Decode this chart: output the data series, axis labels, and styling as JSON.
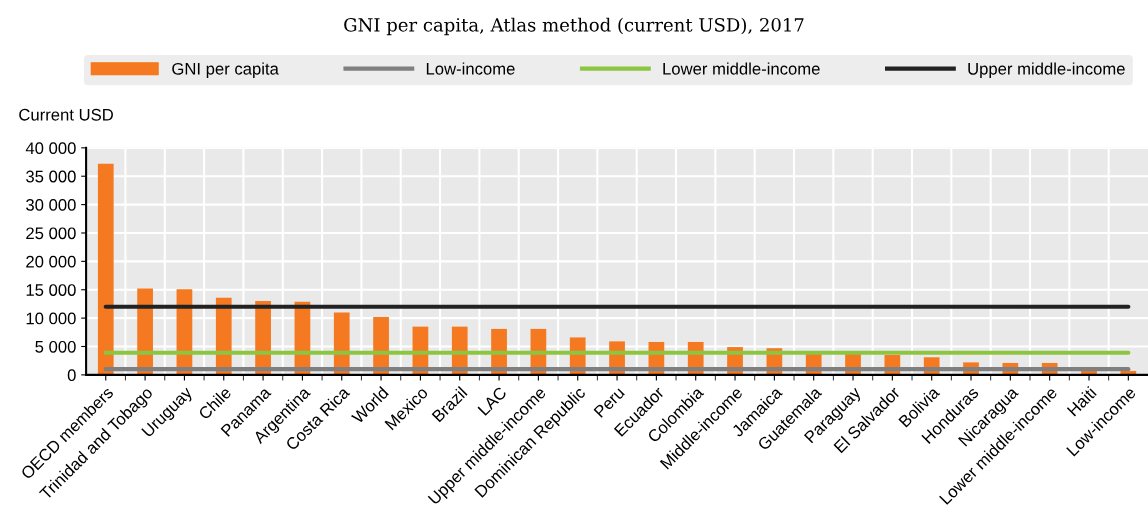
{
  "chart_data": {
    "type": "bar",
    "subtitle": "GNI per capita, Atlas method (current USD), 2017",
    "ylabel": "Current USD",
    "categories": [
      "OECD members",
      "Trinidad and Tobago",
      "Uruguay",
      "Chile",
      "Panama",
      "Argentina",
      "Costa Rica",
      "World",
      "Mexico",
      "Brazil",
      "LAC",
      "Upper middle-income",
      "Dominican Republic",
      "Peru",
      "Ecuador",
      "Colombia",
      "Middle-income",
      "Jamaica",
      "Guatemala",
      "Paraguay",
      "El Salvador",
      "Bolivia",
      "Honduras",
      "Nicaragua",
      "Lower middle-income",
      "Haiti",
      "Low-income"
    ],
    "series": [
      {
        "name": "GNI per capita",
        "color": "#f47920",
        "values": [
          37200,
          15200,
          15100,
          13600,
          13000,
          12900,
          11000,
          10200,
          8500,
          8500,
          8100,
          8100,
          6600,
          5900,
          5800,
          5800,
          4900,
          4700,
          3800,
          3800,
          3500,
          3100,
          2200,
          2100,
          2100,
          800,
          700
        ]
      },
      {
        "name": "Low-income",
        "type": "line",
        "color": "#7f7f7f",
        "values": [
          1000,
          1000,
          1000,
          1000,
          1000,
          1000,
          1000,
          1000,
          1000,
          1000,
          1000,
          1000,
          1000,
          1000,
          1000,
          1000,
          1000,
          1000,
          1000,
          1000,
          1000,
          1000,
          1000,
          1000,
          1000,
          1000,
          1000
        ]
      },
      {
        "name": "Lower middle-income",
        "type": "line",
        "color": "#8cc641",
        "values": [
          3900,
          3900,
          3900,
          3900,
          3900,
          3900,
          3900,
          3900,
          3900,
          3900,
          3900,
          3900,
          3900,
          3900,
          3900,
          3900,
          3900,
          3900,
          3900,
          3900,
          3900,
          3900,
          3900,
          3900,
          3900,
          3900,
          3900
        ]
      },
      {
        "name": "Upper middle-income",
        "type": "line",
        "color": "#222222",
        "values": [
          12000,
          12000,
          12000,
          12000,
          12000,
          12000,
          12000,
          12000,
          12000,
          12000,
          12000,
          12000,
          12000,
          12000,
          12000,
          12000,
          12000,
          12000,
          12000,
          12000,
          12000,
          12000,
          12000,
          12000,
          12000,
          12000,
          12000
        ]
      }
    ],
    "ylim": [
      0,
      40000
    ],
    "yticks": [
      {
        "value": 0,
        "label": "0"
      },
      {
        "value": 5000,
        "label": "5 000"
      },
      {
        "value": 10000,
        "label": "10 000"
      },
      {
        "value": 15000,
        "label": "15 000"
      },
      {
        "value": 20000,
        "label": "20 000"
      },
      {
        "value": 25000,
        "label": "25 000"
      },
      {
        "value": 30000,
        "label": "30 000"
      },
      {
        "value": 35000,
        "label": "35 000"
      },
      {
        "value": 40000,
        "label": "40 000"
      }
    ],
    "grid": true,
    "legend": "top"
  }
}
